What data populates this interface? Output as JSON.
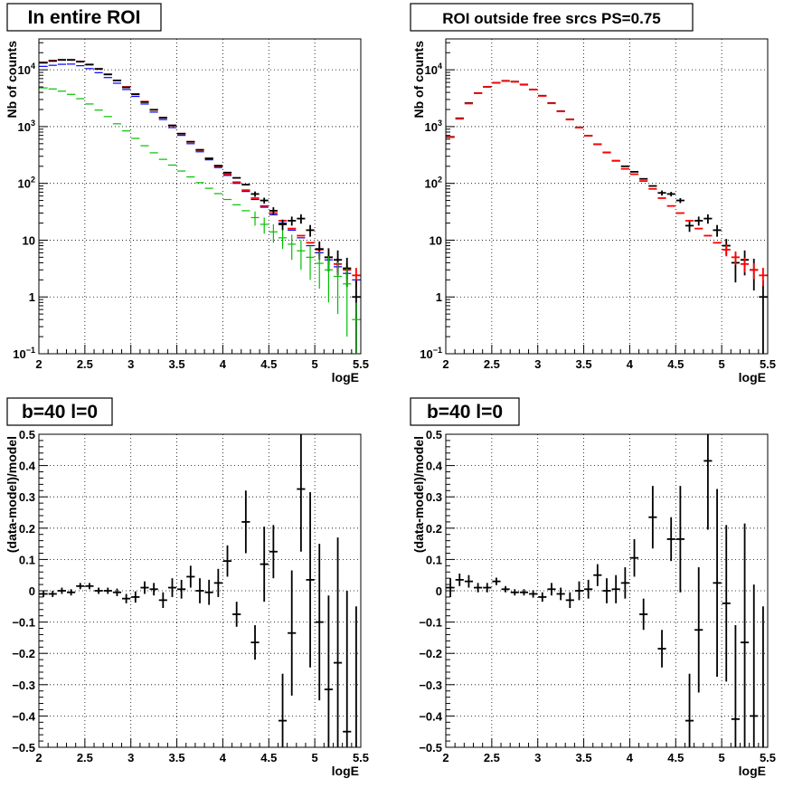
{
  "chart_data": [
    {
      "type": "scatter",
      "title": "In entire ROI",
      "xlabel": "logE",
      "ylabel": "Nb of counts",
      "xlim": [
        2,
        5.5
      ],
      "ylim": [
        0.1,
        35000
      ],
      "yscale": "log",
      "grid": true,
      "x_ticks": [
        "2",
        "2.5",
        "3",
        "3.5",
        "4",
        "4.5",
        "5",
        "5.5"
      ],
      "y_ticks": [
        {
          "value": 0.1,
          "label": "10",
          "sup": "−1"
        },
        {
          "value": 1,
          "label": "1",
          "sup": ""
        },
        {
          "value": 10,
          "label": "10",
          "sup": ""
        },
        {
          "value": 100,
          "label": "10",
          "sup": "2"
        },
        {
          "value": 1000,
          "label": "10",
          "sup": "3"
        },
        {
          "value": 10000,
          "label": "10",
          "sup": "4"
        }
      ],
      "bin_width": 0.1,
      "series": [
        {
          "color": "#0000ff",
          "x": [
            2.05,
            2.15,
            2.25,
            2.35,
            2.45,
            2.55,
            2.65,
            2.75,
            2.85,
            2.95,
            3.05,
            3.15,
            3.25,
            3.35,
            3.45,
            3.55,
            3.65,
            3.75,
            3.85,
            3.95,
            4.05,
            4.15,
            4.25,
            4.35,
            4.45,
            4.55,
            4.65,
            4.75,
            4.85,
            4.95,
            5.05,
            5.15,
            5.25,
            5.35,
            5.45
          ],
          "y": [
            11500,
            12000,
            12500,
            12600,
            11800,
            10500,
            8900,
            7300,
            5800,
            4500,
            3400,
            2500,
            1800,
            1330,
            960,
            700,
            500,
            360,
            260,
            190,
            138,
            100,
            72,
            52,
            38,
            28,
            20,
            15,
            11,
            8,
            6,
            4.5,
            3.4,
            2.6,
            2.0
          ],
          "err": []
        },
        {
          "color": "#ff0000",
          "x": [
            2.05,
            2.15,
            2.25,
            2.35,
            2.45,
            2.55,
            2.65,
            2.75,
            2.85,
            2.95,
            3.05,
            3.15,
            3.25,
            3.35,
            3.45,
            3.55,
            3.65,
            3.75,
            3.85,
            3.95,
            4.05,
            4.15,
            4.25,
            4.35,
            4.45,
            4.55,
            4.65,
            4.75,
            4.85,
            4.95,
            5.05,
            5.15,
            5.25,
            5.35,
            5.45
          ],
          "y": [
            13500,
            14500,
            15000,
            15000,
            14000,
            12300,
            10300,
            8300,
            6500,
            5000,
            3750,
            2750,
            1970,
            1440,
            1040,
            750,
            540,
            385,
            275,
            200,
            145,
            105,
            76,
            55,
            40,
            30,
            22,
            16,
            12,
            9,
            6.8,
            5.0,
            3.8,
            3.0,
            2.4
          ],
          "err": [
            0,
            0,
            0,
            0,
            0,
            0,
            0,
            0,
            0,
            0,
            0,
            0,
            0,
            0,
            0,
            0,
            0,
            0,
            0,
            0,
            0,
            0,
            0,
            0,
            0,
            0,
            0,
            0,
            0,
            0,
            1.6,
            1.3,
            1.1,
            0.95,
            0.85
          ]
        },
        {
          "color": "#000000",
          "x": [
            2.05,
            2.15,
            2.25,
            2.35,
            2.45,
            2.55,
            2.65,
            2.75,
            2.85,
            2.95,
            3.05,
            3.15,
            3.25,
            3.35,
            3.45,
            3.55,
            3.65,
            3.75,
            3.85,
            3.95,
            4.05,
            4.15,
            4.25,
            4.35,
            4.45,
            4.55,
            4.65,
            4.75,
            4.85,
            4.95,
            5.05,
            5.15,
            5.25,
            5.35,
            5.45
          ],
          "y": [
            13300,
            14300,
            14900,
            14900,
            13900,
            12400,
            10400,
            8300,
            6500,
            4900,
            3700,
            2700,
            1980,
            1430,
            1050,
            750,
            540,
            390,
            275,
            205,
            155,
            125,
            95,
            65,
            50,
            33,
            19,
            22,
            24,
            15,
            7,
            5,
            4.5,
            3.2,
            1.0
          ],
          "err": [
            0,
            0,
            0,
            0,
            0,
            0,
            0,
            0,
            0,
            0,
            0,
            0,
            0,
            0,
            0,
            0,
            0,
            0,
            0,
            0,
            0,
            0,
            0,
            7,
            6,
            5,
            4,
            4,
            4.5,
            3.5,
            2.5,
            2.2,
            2.1,
            1.7,
            0.95
          ]
        },
        {
          "color": "#00c000",
          "x": [
            2.05,
            2.15,
            2.25,
            2.35,
            2.45,
            2.55,
            2.65,
            2.75,
            2.85,
            2.95,
            3.05,
            3.15,
            3.25,
            3.35,
            3.45,
            3.55,
            3.65,
            3.75,
            3.85,
            3.95,
            4.05,
            4.15,
            4.25,
            4.35,
            4.45,
            4.55,
            4.65,
            4.75,
            4.85,
            4.95,
            5.05,
            5.15,
            5.25,
            5.35,
            5.45
          ],
          "y": [
            4800,
            4600,
            4200,
            3700,
            3100,
            2500,
            1950,
            1500,
            1120,
            840,
            620,
            460,
            345,
            265,
            210,
            165,
            130,
            103,
            82,
            66,
            52,
            42,
            33,
            25,
            19,
            14,
            11,
            8.5,
            6.5,
            5.0,
            3.9,
            3.0,
            2.3,
            1.7,
            0.4
          ],
          "err": [
            0,
            0,
            0,
            0,
            0,
            0,
            0,
            0,
            0,
            0,
            0,
            0,
            0,
            0,
            0,
            0,
            0,
            0,
            0,
            0,
            0,
            0,
            0,
            7,
            6,
            5,
            4,
            4,
            3.5,
            3,
            2.5,
            2.2,
            1.8,
            1.5,
            0.39
          ]
        }
      ]
    },
    {
      "type": "scatter",
      "title": "ROI outside free srcs PS=0.75",
      "xlabel": "logE",
      "ylabel": "Nb of counts",
      "xlim": [
        2,
        5.5
      ],
      "ylim": [
        0.1,
        35000
      ],
      "yscale": "log",
      "grid": true,
      "x_ticks": [
        "2",
        "2.5",
        "3",
        "3.5",
        "4",
        "4.5",
        "5",
        "5.5"
      ],
      "y_ticks": [
        {
          "value": 0.1,
          "label": "10",
          "sup": "−1"
        },
        {
          "value": 1,
          "label": "1",
          "sup": ""
        },
        {
          "value": 10,
          "label": "10",
          "sup": ""
        },
        {
          "value": 100,
          "label": "10",
          "sup": "2"
        },
        {
          "value": 1000,
          "label": "10",
          "sup": "3"
        },
        {
          "value": 10000,
          "label": "10",
          "sup": "4"
        }
      ],
      "bin_width": 0.1,
      "series": [
        {
          "color": "#000000",
          "x": [
            2.05,
            2.15,
            2.25,
            2.35,
            2.45,
            2.55,
            2.65,
            2.75,
            2.85,
            2.95,
            3.05,
            3.15,
            3.25,
            3.35,
            3.45,
            3.55,
            3.65,
            3.75,
            3.85,
            3.95,
            4.05,
            4.15,
            4.25,
            4.35,
            4.45,
            4.55,
            4.65,
            4.75,
            4.85,
            4.95,
            5.05,
            5.15,
            5.25,
            5.35,
            5.45
          ],
          "y": [
            660,
            1400,
            2600,
            3900,
            5000,
            5900,
            6400,
            6200,
            5500,
            4500,
            3500,
            2600,
            1870,
            1340,
            970,
            690,
            490,
            350,
            250,
            200,
            160,
            120,
            90,
            68,
            65,
            50,
            18,
            22,
            24,
            15,
            8,
            4,
            4.5,
            3,
            1.0
          ],
          "err": [
            0,
            0,
            0,
            0,
            0,
            0,
            0,
            0,
            0,
            0,
            0,
            0,
            0,
            0,
            0,
            0,
            0,
            0,
            0,
            0,
            0,
            0,
            0,
            7,
            6,
            5,
            4,
            4,
            4.5,
            3.5,
            2.5,
            2.2,
            2.1,
            1.7,
            0.95
          ]
        },
        {
          "color": "#ff0000",
          "x": [
            2.05,
            2.15,
            2.25,
            2.35,
            2.45,
            2.55,
            2.65,
            2.75,
            2.85,
            2.95,
            3.05,
            3.15,
            3.25,
            3.35,
            3.45,
            3.55,
            3.65,
            3.75,
            3.85,
            3.95,
            4.05,
            4.15,
            4.25,
            4.35,
            4.45,
            4.55,
            4.65,
            4.75,
            4.85,
            4.95,
            5.05,
            5.15,
            5.25,
            5.35,
            5.45
          ],
          "y": [
            650,
            1370,
            2550,
            3880,
            4980,
            5880,
            6350,
            6150,
            5450,
            4480,
            3470,
            2570,
            1850,
            1330,
            960,
            690,
            490,
            350,
            250,
            180,
            145,
            110,
            80,
            55,
            40,
            30,
            22,
            16,
            12,
            9,
            6.8,
            5.0,
            3.8,
            3.0,
            2.4
          ],
          "err": [
            0,
            0,
            0,
            0,
            0,
            0,
            0,
            0,
            0,
            0,
            0,
            0,
            0,
            0,
            0,
            0,
            0,
            0,
            0,
            0,
            0,
            0,
            0,
            0,
            0,
            0,
            0,
            0,
            0,
            0,
            1.6,
            1.3,
            1.1,
            0.95,
            0.85
          ]
        }
      ]
    },
    {
      "type": "scatter",
      "title": "b=40 l=0",
      "xlabel": "logE",
      "ylabel": "(data-model)/model",
      "xlim": [
        2,
        5.5
      ],
      "ylim": [
        -0.5,
        0.5
      ],
      "yscale": "linear",
      "grid": true,
      "x_ticks": [
        "2",
        "2.5",
        "3",
        "3.5",
        "4",
        "4.5",
        "5",
        "5.5"
      ],
      "y_ticks": [
        {
          "value": -0.5,
          "label": "−0.5"
        },
        {
          "value": -0.4,
          "label": "−0.4"
        },
        {
          "value": -0.3,
          "label": "−0.3"
        },
        {
          "value": -0.2,
          "label": "−0.2"
        },
        {
          "value": -0.1,
          "label": "−0.1"
        },
        {
          "value": 0,
          "label": "0"
        },
        {
          "value": 0.1,
          "label": "0.1"
        },
        {
          "value": 0.2,
          "label": "0.2"
        },
        {
          "value": 0.3,
          "label": "0.3"
        },
        {
          "value": 0.4,
          "label": "0.4"
        },
        {
          "value": 0.5,
          "label": "0.5"
        }
      ],
      "bin_width": 0.1,
      "series": [
        {
          "color": "#000000",
          "x": [
            2.05,
            2.15,
            2.25,
            2.35,
            2.45,
            2.55,
            2.65,
            2.75,
            2.85,
            2.95,
            3.05,
            3.15,
            3.25,
            3.35,
            3.45,
            3.55,
            3.65,
            3.75,
            3.85,
            3.95,
            4.05,
            4.15,
            4.25,
            4.35,
            4.45,
            4.55,
            4.65,
            4.75,
            4.85,
            4.95,
            5.05,
            5.15,
            5.25,
            5.35,
            5.45
          ],
          "y": [
            -0.01,
            -0.01,
            0.0,
            -0.005,
            0.015,
            0.015,
            0.0,
            0.0,
            -0.005,
            -0.025,
            -0.02,
            0.01,
            0.005,
            -0.03,
            0.01,
            0.005,
            0.045,
            0.0,
            -0.005,
            0.025,
            0.095,
            -0.075,
            0.22,
            -0.165,
            0.085,
            0.125,
            -0.415,
            -0.135,
            0.325,
            0.035,
            -0.1,
            -0.315,
            -0.23,
            -0.45,
            -0.55
          ],
          "err": [
            0.01,
            0.01,
            0.01,
            0.01,
            0.01,
            0.01,
            0.01,
            0.01,
            0.012,
            0.015,
            0.018,
            0.02,
            0.02,
            0.025,
            0.03,
            0.03,
            0.035,
            0.04,
            0.04,
            0.045,
            0.05,
            0.04,
            0.1,
            0.055,
            0.12,
            0.085,
            0.15,
            0.2,
            0.2,
            0.28,
            0.25,
            0.3,
            0.4,
            0.45,
            0.5
          ]
        }
      ]
    },
    {
      "type": "scatter",
      "title": "b=40 l=0",
      "xlabel": "logE",
      "ylabel": "(data-model)/model",
      "xlim": [
        2,
        5.5
      ],
      "ylim": [
        -0.5,
        0.5
      ],
      "yscale": "linear",
      "grid": true,
      "x_ticks": [
        "2",
        "2.5",
        "3",
        "3.5",
        "4",
        "4.5",
        "5",
        "5.5"
      ],
      "y_ticks": [
        {
          "value": -0.5,
          "label": "−0.5"
        },
        {
          "value": -0.4,
          "label": "−0.4"
        },
        {
          "value": -0.3,
          "label": "−0.3"
        },
        {
          "value": -0.2,
          "label": "−0.2"
        },
        {
          "value": -0.1,
          "label": "−0.1"
        },
        {
          "value": 0,
          "label": "0"
        },
        {
          "value": 0.1,
          "label": "0.1"
        },
        {
          "value": 0.2,
          "label": "0.2"
        },
        {
          "value": 0.3,
          "label": "0.3"
        },
        {
          "value": 0.4,
          "label": "0.4"
        },
        {
          "value": 0.5,
          "label": "0.5"
        }
      ],
      "bin_width": 0.1,
      "series": [
        {
          "color": "#000000",
          "x": [
            2.05,
            2.15,
            2.25,
            2.35,
            2.45,
            2.55,
            2.65,
            2.75,
            2.85,
            2.95,
            3.05,
            3.15,
            3.25,
            3.35,
            3.45,
            3.55,
            3.65,
            3.75,
            3.85,
            3.95,
            4.05,
            4.15,
            4.25,
            4.35,
            4.45,
            4.55,
            4.65,
            4.75,
            4.85,
            4.95,
            5.05,
            5.15,
            5.25,
            5.35,
            5.45
          ],
          "y": [
            0.01,
            0.035,
            0.03,
            0.01,
            0.01,
            0.03,
            0.005,
            -0.005,
            -0.005,
            -0.01,
            -0.02,
            0.005,
            -0.01,
            -0.03,
            0.0,
            0.005,
            0.05,
            0.0,
            0.005,
            0.025,
            0.105,
            -0.075,
            0.235,
            -0.185,
            0.165,
            0.165,
            -0.415,
            -0.125,
            0.415,
            0.025,
            -0.04,
            -0.41,
            -0.165,
            -0.4,
            -0.55
          ],
          "err": [
            0.03,
            0.02,
            0.02,
            0.015,
            0.015,
            0.012,
            0.01,
            0.01,
            0.01,
            0.012,
            0.015,
            0.02,
            0.02,
            0.025,
            0.03,
            0.03,
            0.035,
            0.04,
            0.045,
            0.05,
            0.06,
            0.05,
            0.1,
            0.06,
            0.07,
            0.17,
            0.15,
            0.2,
            0.22,
            0.3,
            0.25,
            0.3,
            0.38,
            0.42,
            0.5
          ]
        }
      ]
    }
  ]
}
